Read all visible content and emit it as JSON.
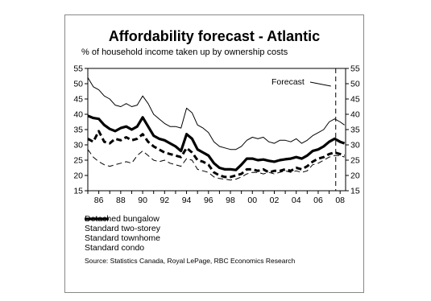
{
  "chart_data": {
    "type": "line",
    "title": "Affordability forecast - Atlantic",
    "subtitle": "% of household income taken up by ownership costs",
    "ylim": [
      15,
      55
    ],
    "yticks": [
      15,
      20,
      25,
      30,
      35,
      40,
      45,
      50,
      55
    ],
    "xlim": [
      1985,
      2008.5
    ],
    "xticks": [
      {
        "x": 1986,
        "label": "86"
      },
      {
        "x": 1988,
        "label": "88"
      },
      {
        "x": 1990,
        "label": "90"
      },
      {
        "x": 1992,
        "label": "92"
      },
      {
        "x": 1994,
        "label": "94"
      },
      {
        "x": 1996,
        "label": "96"
      },
      {
        "x": 1998,
        "label": "98"
      },
      {
        "x": 2000,
        "label": "00"
      },
      {
        "x": 2002,
        "label": "02"
      },
      {
        "x": 2004,
        "label": "04"
      },
      {
        "x": 2006,
        "label": "06"
      },
      {
        "x": 2008,
        "label": "08"
      }
    ],
    "forecast": {
      "label": "Forecast",
      "x": 2007.6
    },
    "x": [
      1985.0,
      1985.5,
      1986.0,
      1986.5,
      1987.0,
      1987.5,
      1988.0,
      1988.5,
      1989.0,
      1989.5,
      1990.0,
      1990.5,
      1991.0,
      1991.5,
      1992.0,
      1992.5,
      1993.0,
      1993.5,
      1994.0,
      1994.5,
      1995.0,
      1995.5,
      1996.0,
      1996.5,
      1997.0,
      1997.5,
      1998.0,
      1998.5,
      1999.0,
      1999.5,
      2000.0,
      2000.5,
      2001.0,
      2001.5,
      2002.0,
      2002.5,
      2003.0,
      2003.5,
      2004.0,
      2004.5,
      2005.0,
      2005.5,
      2006.0,
      2006.5,
      2007.0,
      2007.5,
      2008.0,
      2008.4
    ],
    "series": [
      {
        "name": "Detached bungalow",
        "style": "thick",
        "values": [
          39.5,
          38.8,
          38.5,
          36.5,
          35.2,
          34.5,
          35.5,
          36.0,
          35.0,
          36.0,
          39.0,
          36.0,
          33.0,
          32.0,
          31.5,
          30.5,
          29.5,
          28.0,
          33.5,
          32.0,
          28.5,
          27.5,
          26.5,
          24.0,
          22.5,
          22.0,
          22.0,
          21.8,
          23.5,
          25.5,
          25.5,
          25.0,
          25.2,
          24.8,
          24.5,
          25.0,
          25.3,
          25.5,
          26.0,
          25.5,
          26.5,
          28.0,
          28.5,
          29.5,
          31.0,
          32.0,
          31.0,
          30.5
        ]
      },
      {
        "name": "Standard two-storey",
        "style": "thin",
        "values": [
          52.0,
          49.0,
          48.0,
          46.0,
          45.0,
          43.0,
          42.5,
          43.5,
          42.5,
          43.0,
          46.0,
          43.5,
          40.0,
          38.5,
          37.0,
          36.0,
          36.0,
          35.5,
          42.0,
          40.5,
          36.5,
          35.5,
          34.0,
          31.0,
          29.5,
          29.0,
          28.5,
          28.5,
          29.5,
          31.5,
          32.5,
          32.0,
          32.5,
          31.0,
          30.5,
          31.5,
          31.5,
          31.0,
          32.0,
          30.5,
          31.5,
          33.0,
          34.0,
          35.0,
          37.5,
          38.5,
          37.5,
          36.5
        ]
      },
      {
        "name": "Standard townhome",
        "style": "dash-thin",
        "values": [
          28.5,
          26.0,
          24.5,
          23.5,
          23.0,
          23.5,
          24.0,
          24.5,
          24.0,
          26.5,
          28.0,
          26.5,
          25.0,
          24.5,
          25.0,
          24.0,
          23.5,
          23.0,
          25.5,
          25.0,
          22.0,
          21.5,
          21.0,
          19.5,
          19.0,
          18.8,
          18.5,
          18.8,
          19.5,
          20.5,
          21.0,
          21.0,
          20.5,
          21.0,
          20.5,
          21.0,
          21.5,
          21.0,
          21.5,
          21.0,
          21.5,
          23.5,
          24.0,
          25.0,
          26.0,
          26.5,
          26.5,
          26.0
        ]
      },
      {
        "name": "Standard condo",
        "style": "dash-thick",
        "values": [
          32.0,
          31.0,
          34.5,
          31.0,
          30.5,
          32.0,
          31.5,
          32.5,
          31.5,
          32.0,
          33.5,
          31.0,
          29.5,
          28.5,
          27.5,
          27.0,
          26.5,
          26.0,
          29.0,
          27.5,
          25.0,
          24.5,
          23.5,
          21.0,
          20.0,
          19.5,
          19.5,
          20.0,
          20.5,
          22.0,
          22.0,
          21.5,
          22.0,
          21.0,
          21.5,
          21.5,
          22.0,
          21.5,
          22.5,
          22.0,
          23.0,
          24.5,
          25.5,
          26.0,
          27.0,
          27.5,
          27.0,
          26.5
        ]
      }
    ],
    "legend_position": "bottom-left"
  },
  "source": "Source: Statistics Canada, Royal LePage, RBC Economics Research"
}
